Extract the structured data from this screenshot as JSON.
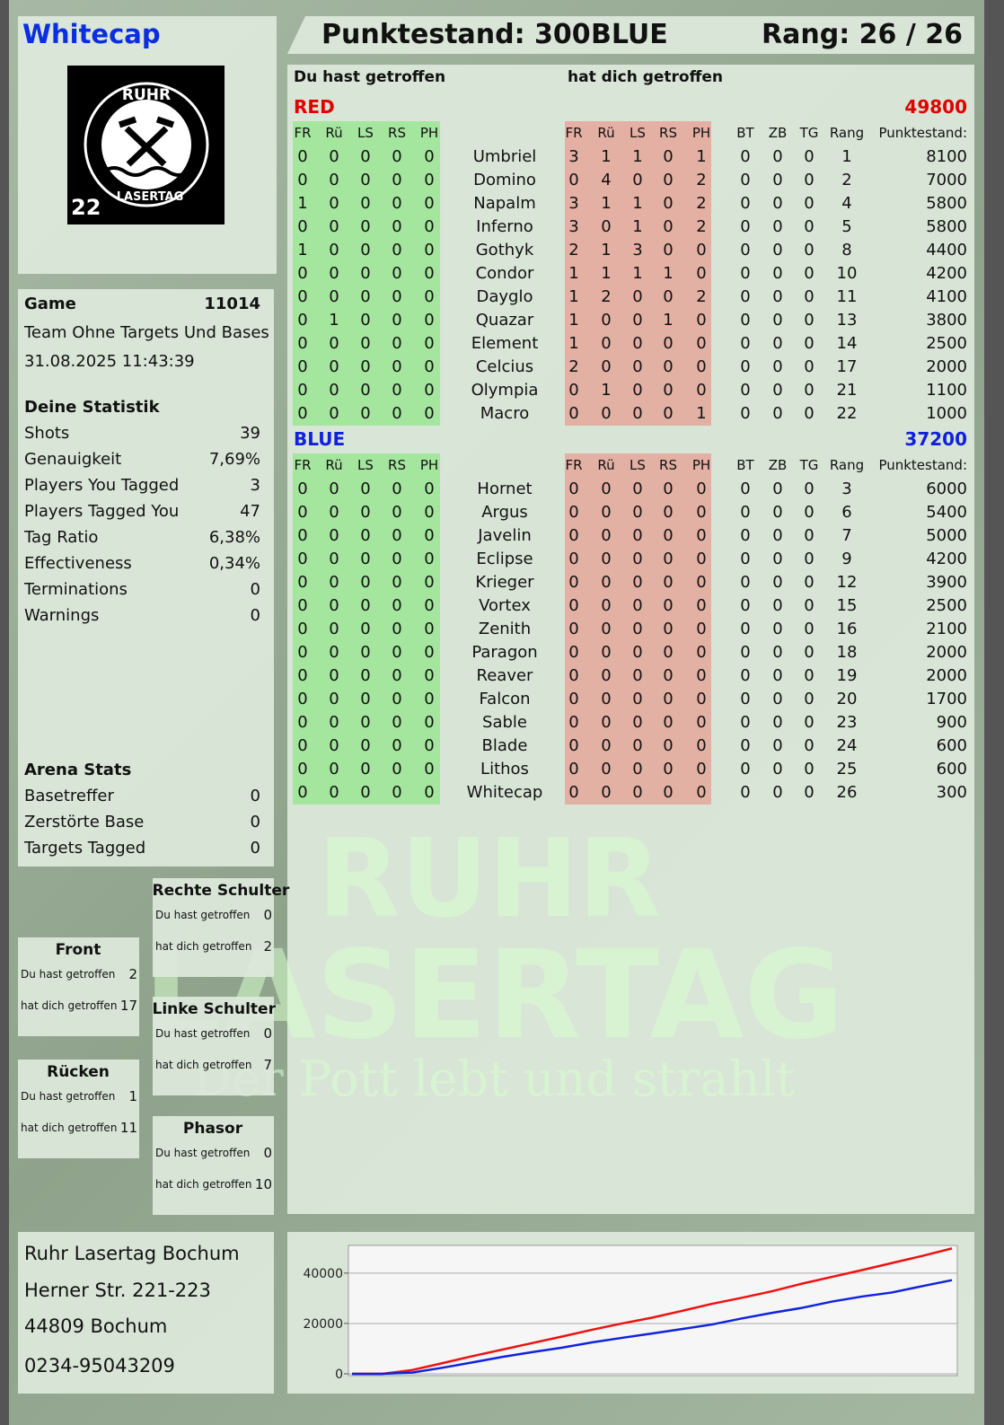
{
  "header": {
    "name": "Whitecap",
    "score": "Punktestand: 300",
    "team": "BLUE",
    "rank": "Rang: 26 / 26"
  },
  "logo": {
    "top": "RUHR",
    "bottom": "LASERTAG",
    "number": "22"
  },
  "watermark": {
    "line1": "RUHR",
    "line2": "LASERTAG",
    "tagline": "Der Pott lebt und strahlt"
  },
  "game": {
    "label": "Game",
    "id": "11014",
    "mode": "Team Ohne Targets Und Bases",
    "datetime": "31.08.2025 11:43:39"
  },
  "stats": {
    "title": "Deine Statistik",
    "rows": [
      [
        "Shots",
        "39"
      ],
      [
        "Genauigkeit",
        "7,69%"
      ],
      [
        "Players You Tagged",
        "3"
      ],
      [
        "Players Tagged You",
        "47"
      ],
      [
        "Tag Ratio",
        "6,38%"
      ],
      [
        "Effectiveness",
        "0,34%"
      ],
      [
        "Terminations",
        "0"
      ],
      [
        "Warnings",
        "0"
      ]
    ]
  },
  "arena": {
    "title": "Arena Stats",
    "rows": [
      [
        "Basetreffer",
        "0"
      ],
      [
        "Zerstörte Base",
        "0"
      ],
      [
        "Targets Tagged",
        "0"
      ]
    ]
  },
  "hit_zones": [
    {
      "title": "Rechte Schulter",
      "rows": [
        [
          "Du hast getroffen",
          "0"
        ],
        [
          "hat dich getroffen",
          "2"
        ]
      ]
    },
    {
      "title": "Front",
      "rows": [
        [
          "Du hast getroffen",
          "2"
        ],
        [
          "hat dich getroffen",
          "17"
        ]
      ]
    },
    {
      "title": "Linke Schulter",
      "rows": [
        [
          "Du hast getroffen",
          "0"
        ],
        [
          "hat dich getroffen",
          "7"
        ]
      ]
    },
    {
      "title": "Rücken",
      "rows": [
        [
          "Du hast getroffen",
          "1"
        ],
        [
          "hat dich getroffen",
          "11"
        ]
      ]
    },
    {
      "title": "Phasor",
      "rows": [
        [
          "Du hast getroffen",
          "0"
        ],
        [
          "hat dich getroffen",
          "10"
        ]
      ]
    }
  ],
  "address": [
    "Ruhr Lasertag Bochum",
    "Herner Str. 221-223",
    "44809 Bochum",
    "0234-95043209"
  ],
  "table": {
    "header_given": "Du hast getroffen",
    "header_received": "hat dich getroffen",
    "columns": [
      "FR",
      "Rü",
      "LS",
      "RS",
      "PH",
      "BT",
      "ZB",
      "TG",
      "Rang",
      "Punktestand:"
    ],
    "teams": [
      {
        "name": "RED",
        "score": "49800",
        "color": "#e00000",
        "rows": [
          [
            "Umbriel",
            0,
            0,
            0,
            0,
            0,
            3,
            1,
            1,
            0,
            1,
            0,
            0,
            0,
            1,
            8100
          ],
          [
            "Domino",
            0,
            0,
            0,
            0,
            0,
            0,
            4,
            0,
            0,
            2,
            0,
            0,
            0,
            2,
            7000
          ],
          [
            "Napalm",
            1,
            0,
            0,
            0,
            0,
            3,
            1,
            1,
            0,
            2,
            0,
            0,
            0,
            4,
            5800
          ],
          [
            "Inferno",
            0,
            0,
            0,
            0,
            0,
            3,
            0,
            1,
            0,
            2,
            0,
            0,
            0,
            5,
            5800
          ],
          [
            "Gothyk",
            1,
            0,
            0,
            0,
            0,
            2,
            1,
            3,
            0,
            0,
            0,
            0,
            0,
            8,
            4400
          ],
          [
            "Condor",
            0,
            0,
            0,
            0,
            0,
            1,
            1,
            1,
            1,
            0,
            0,
            0,
            0,
            10,
            4200
          ],
          [
            "Dayglo",
            0,
            0,
            0,
            0,
            0,
            1,
            2,
            0,
            0,
            2,
            0,
            0,
            0,
            11,
            4100
          ],
          [
            "Quazar",
            0,
            1,
            0,
            0,
            0,
            1,
            0,
            0,
            1,
            0,
            0,
            0,
            0,
            13,
            3800
          ],
          [
            "Element",
            0,
            0,
            0,
            0,
            0,
            1,
            0,
            0,
            0,
            0,
            0,
            0,
            0,
            14,
            2500
          ],
          [
            "Celcius",
            0,
            0,
            0,
            0,
            0,
            2,
            0,
            0,
            0,
            0,
            0,
            0,
            0,
            17,
            2000
          ],
          [
            "Olympia",
            0,
            0,
            0,
            0,
            0,
            0,
            1,
            0,
            0,
            0,
            0,
            0,
            0,
            21,
            1100
          ],
          [
            "Macro",
            0,
            0,
            0,
            0,
            0,
            0,
            0,
            0,
            0,
            1,
            0,
            0,
            0,
            22,
            1000
          ]
        ]
      },
      {
        "name": "BLUE",
        "score": "37200",
        "color": "#1020e0",
        "rows": [
          [
            "Hornet",
            0,
            0,
            0,
            0,
            0,
            0,
            0,
            0,
            0,
            0,
            0,
            0,
            0,
            3,
            6000
          ],
          [
            "Argus",
            0,
            0,
            0,
            0,
            0,
            0,
            0,
            0,
            0,
            0,
            0,
            0,
            0,
            6,
            5400
          ],
          [
            "Javelin",
            0,
            0,
            0,
            0,
            0,
            0,
            0,
            0,
            0,
            0,
            0,
            0,
            0,
            7,
            5000
          ],
          [
            "Eclipse",
            0,
            0,
            0,
            0,
            0,
            0,
            0,
            0,
            0,
            0,
            0,
            0,
            0,
            9,
            4200
          ],
          [
            "Krieger",
            0,
            0,
            0,
            0,
            0,
            0,
            0,
            0,
            0,
            0,
            0,
            0,
            0,
            12,
            3900
          ],
          [
            "Vortex",
            0,
            0,
            0,
            0,
            0,
            0,
            0,
            0,
            0,
            0,
            0,
            0,
            0,
            15,
            2500
          ],
          [
            "Zenith",
            0,
            0,
            0,
            0,
            0,
            0,
            0,
            0,
            0,
            0,
            0,
            0,
            0,
            16,
            2100
          ],
          [
            "Paragon",
            0,
            0,
            0,
            0,
            0,
            0,
            0,
            0,
            0,
            0,
            0,
            0,
            0,
            18,
            2000
          ],
          [
            "Reaver",
            0,
            0,
            0,
            0,
            0,
            0,
            0,
            0,
            0,
            0,
            0,
            0,
            0,
            19,
            2000
          ],
          [
            "Falcon",
            0,
            0,
            0,
            0,
            0,
            0,
            0,
            0,
            0,
            0,
            0,
            0,
            0,
            20,
            1700
          ],
          [
            "Sable",
            0,
            0,
            0,
            0,
            0,
            0,
            0,
            0,
            0,
            0,
            0,
            0,
            0,
            23,
            900
          ],
          [
            "Blade",
            0,
            0,
            0,
            0,
            0,
            0,
            0,
            0,
            0,
            0,
            0,
            0,
            0,
            24,
            600
          ],
          [
            "Lithos",
            0,
            0,
            0,
            0,
            0,
            0,
            0,
            0,
            0,
            0,
            0,
            0,
            0,
            25,
            600
          ],
          [
            "Whitecap",
            0,
            0,
            0,
            0,
            0,
            0,
            0,
            0,
            0,
            0,
            0,
            0,
            0,
            26,
            300
          ]
        ]
      }
    ]
  },
  "chart_data": {
    "type": "line",
    "ylim": [
      -700,
      51000
    ],
    "yticks": [
      0,
      20000,
      40000
    ],
    "grid": true,
    "series": [
      {
        "color": "#ee1111",
        "values": [
          0,
          0,
          1500,
          4200,
          7000,
          9600,
          12200,
          14800,
          17500,
          20000,
          22300,
          25000,
          27800,
          30200,
          32800,
          35800,
          38500,
          41200,
          44000,
          46800,
          49800
        ]
      },
      {
        "color": "#1122dd",
        "values": [
          0,
          0,
          500,
          2400,
          4500,
          6700,
          8600,
          10400,
          12500,
          14300,
          16000,
          17800,
          19600,
          22000,
          24200,
          26200,
          28700,
          30700,
          32300,
          34800,
          37200
        ]
      }
    ]
  }
}
